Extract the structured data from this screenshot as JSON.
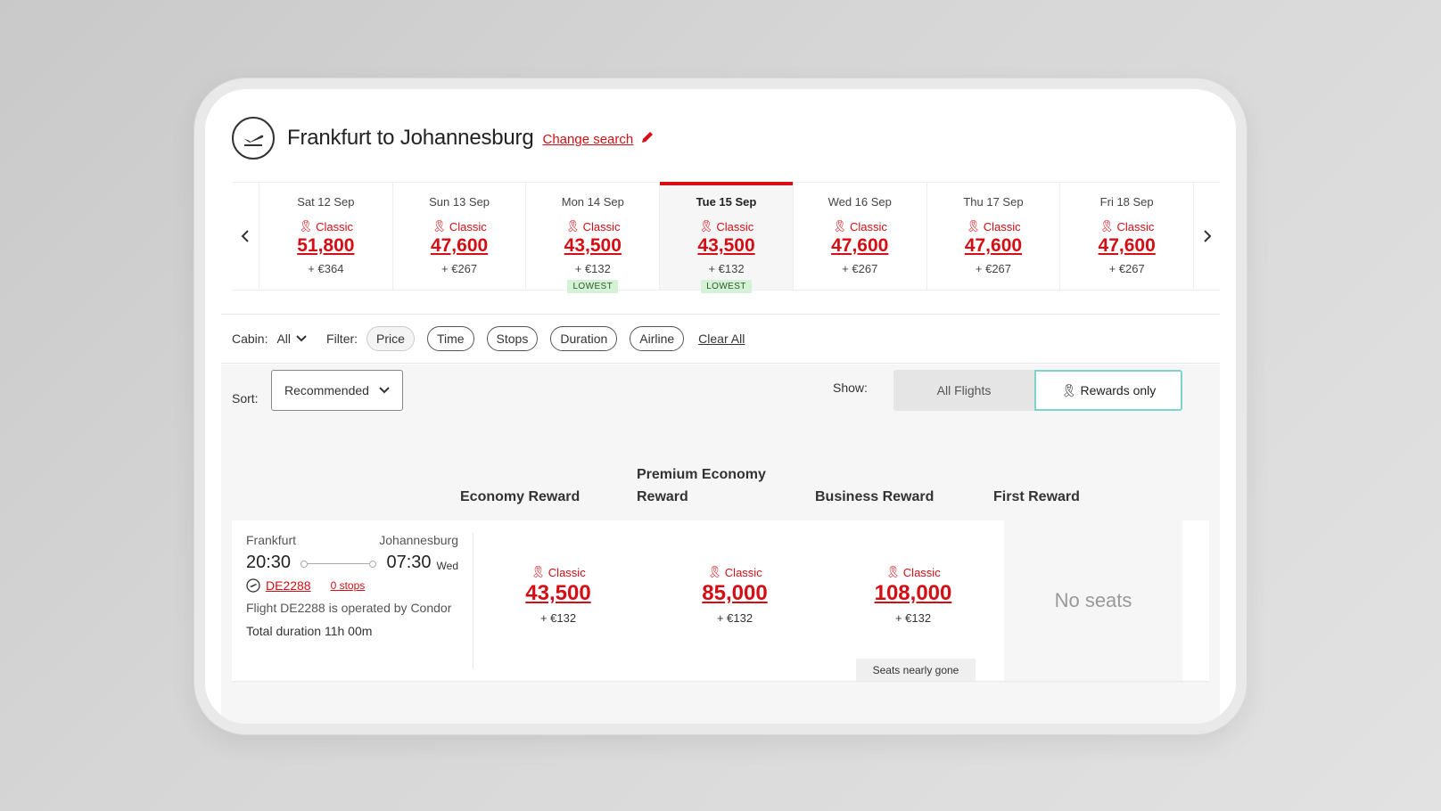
{
  "header": {
    "title": "Frankfurt to Johannesburg",
    "change_search": "Change search"
  },
  "dates": [
    {
      "label": "Sat 12 Sep",
      "classic": "Classic",
      "points": "51,800",
      "fee": "+ €364",
      "badge": ""
    },
    {
      "label": "Sun 13 Sep",
      "classic": "Classic",
      "points": "47,600",
      "fee": "+ €267",
      "badge": ""
    },
    {
      "label": "Mon 14 Sep",
      "classic": "Classic",
      "points": "43,500",
      "fee": "+ €132",
      "badge": "LOWEST"
    },
    {
      "label": "Tue 15 Sep",
      "classic": "Classic",
      "points": "43,500",
      "fee": "+ €132",
      "badge": "LOWEST"
    },
    {
      "label": "Wed 16 Sep",
      "classic": "Classic",
      "points": "47,600",
      "fee": "+ €267",
      "badge": ""
    },
    {
      "label": "Thu 17 Sep",
      "classic": "Classic",
      "points": "47,600",
      "fee": "+ €267",
      "badge": ""
    },
    {
      "label": "Fri 18 Sep",
      "classic": "Classic",
      "points": "47,600",
      "fee": "+ €267",
      "badge": ""
    }
  ],
  "filters": {
    "cabin_label": "Cabin:",
    "cabin_value": "All",
    "filter_label": "Filter:",
    "pills": [
      "Price",
      "Time",
      "Stops",
      "Duration",
      "Airline"
    ],
    "clear_all": "Clear All"
  },
  "sort": {
    "label": "Sort:",
    "value": "Recommended"
  },
  "show": {
    "label": "Show:",
    "all_flights": "All Flights",
    "rewards_only": "Rewards only"
  },
  "columns": [
    "Economy Reward",
    "Premium Economy Reward",
    "Business Reward",
    "First Reward"
  ],
  "flight": {
    "origin": "Frankfurt",
    "destination": "Johannesburg",
    "depart": "20:30",
    "arrive": "07:30",
    "arrive_day": "Wed",
    "flight_no": "DE2288",
    "stops": "0 stops",
    "operated": "Flight DE2288 is operated by Condor",
    "duration": "Total duration 11h 00m",
    "fares": [
      {
        "classic": "Classic",
        "points": "43,500",
        "fee": "+ €132"
      },
      {
        "classic": "Classic",
        "points": "85,000",
        "fee": "+ €132"
      },
      {
        "classic": "Classic",
        "points": "108,000",
        "fee": "+ €132"
      }
    ],
    "no_seats": "No seats",
    "nearly_gone": "Seats nearly gone"
  },
  "colors": {
    "accent": "#d40e14",
    "toggle_border": "#7fd3cf",
    "lowest_bg": "#d6f2d6"
  }
}
